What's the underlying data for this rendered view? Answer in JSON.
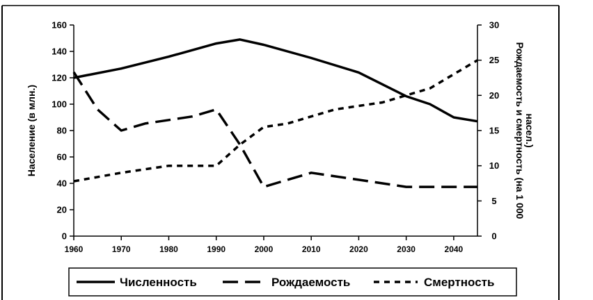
{
  "chart_data": {
    "type": "line",
    "title": "",
    "x": [
      1960,
      1965,
      1970,
      1975,
      1980,
      1985,
      1990,
      1995,
      2000,
      2005,
      2010,
      2015,
      2020,
      2025,
      2030,
      2035,
      2040,
      2045
    ],
    "xticks": [
      "1960",
      "1970",
      "1980",
      "1990",
      "2000",
      "2010",
      "2020",
      "2030",
      "2040"
    ],
    "xlim": [
      1960,
      2045
    ],
    "y_left": {
      "label": "Население (в млн.)",
      "ylim": [
        0,
        160
      ],
      "ticks": [
        "0",
        "20",
        "40",
        "60",
        "80",
        "100",
        "120",
        "140",
        "160"
      ]
    },
    "y_right": {
      "label": "Рождаемость и смертность (на 1 000 насел.)",
      "label_lines": [
        "Рождаемость и смертность (на 1 000",
        "насел.)"
      ],
      "ylim": [
        0,
        30
      ],
      "ticks": [
        "0",
        "5",
        "10",
        "15",
        "20",
        "25",
        "30"
      ]
    },
    "series": [
      {
        "name": "Численность",
        "axis": "left",
        "style": "solid",
        "x": [
          1960,
          1970,
          1980,
          1990,
          1995,
          2000,
          2010,
          2020,
          2030,
          2035,
          2040,
          2045
        ],
        "values": [
          120,
          127,
          136,
          146,
          149,
          145,
          135,
          124,
          106,
          100,
          90,
          87
        ]
      },
      {
        "name": "Рождаемость",
        "axis": "right",
        "style": "long-dash",
        "x": [
          1960,
          1965,
          1970,
          1975,
          1980,
          1985,
          1990,
          1995,
          2000,
          2005,
          2010,
          2020,
          2030,
          2040,
          2045
        ],
        "values": [
          23.3,
          18,
          15,
          16,
          16.5,
          17,
          18,
          13,
          7,
          8,
          9,
          8,
          7,
          7,
          7
        ]
      },
      {
        "name": "Смертность",
        "axis": "right",
        "style": "short-dash",
        "x": [
          1960,
          1970,
          1980,
          1990,
          1995,
          2000,
          2005,
          2010,
          2015,
          2020,
          2025,
          2030,
          2035,
          2040,
          2045
        ],
        "values": [
          7.8,
          9,
          10,
          10,
          13,
          15.5,
          16,
          17,
          18,
          18.5,
          19,
          20,
          21,
          23,
          25
        ]
      }
    ],
    "legend": {
      "placement": "bottom",
      "items": [
        "Численность",
        "Рождаемость",
        "Смертность"
      ]
    },
    "grid": false
  }
}
